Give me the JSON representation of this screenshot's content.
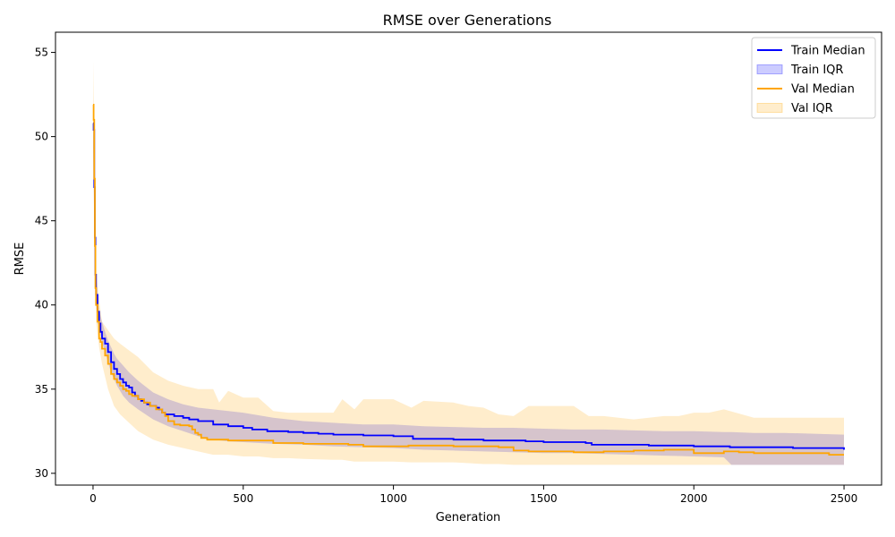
{
  "chart_data": {
    "type": "line",
    "title": "RMSE over Generations",
    "xlabel": "Generation",
    "ylabel": "RMSE",
    "xlim": [
      -125,
      2625
    ],
    "ylim": [
      29.3,
      56.2
    ],
    "xticks": [
      0,
      500,
      1000,
      1500,
      2000,
      2500
    ],
    "yticks": [
      30,
      35,
      40,
      45,
      50,
      55
    ],
    "grid": false,
    "legend_position": "top-right",
    "series": [
      {
        "name": "Train Median",
        "kind": "line",
        "color": "#0000ff",
        "x": [
          0,
          2,
          4,
          6,
          8,
          10,
          15,
          20,
          25,
          30,
          40,
          50,
          60,
          70,
          80,
          90,
          100,
          110,
          120,
          130,
          140,
          150,
          160,
          170,
          180,
          190,
          200,
          210,
          220,
          230,
          240,
          250,
          270,
          290,
          300,
          320,
          350,
          400,
          450,
          500,
          530,
          580,
          650,
          700,
          750,
          800,
          850,
          900,
          950,
          1000,
          1050,
          1065,
          1100,
          1200,
          1300,
          1400,
          1440,
          1500,
          1600,
          1640,
          1660,
          1700,
          1800,
          1850,
          1900,
          2000,
          2100,
          2120,
          2200,
          2300,
          2330,
          2400,
          2490,
          2500
        ],
        "y": [
          50.8,
          50.4,
          47.0,
          44.0,
          41.8,
          40.6,
          39.6,
          38.9,
          38.4,
          38.0,
          37.7,
          37.2,
          36.6,
          36.2,
          35.9,
          35.6,
          35.4,
          35.2,
          35.1,
          34.8,
          34.6,
          34.4,
          34.3,
          34.2,
          34.1,
          34.0,
          34.0,
          33.9,
          33.8,
          33.6,
          33.5,
          33.5,
          33.4,
          33.4,
          33.3,
          33.2,
          33.1,
          32.9,
          32.8,
          32.7,
          32.6,
          32.5,
          32.45,
          32.4,
          32.35,
          32.3,
          32.3,
          32.25,
          32.25,
          32.2,
          32.2,
          32.05,
          32.05,
          32.0,
          31.95,
          31.95,
          31.9,
          31.85,
          31.85,
          31.8,
          31.7,
          31.7,
          31.7,
          31.65,
          31.65,
          31.6,
          31.6,
          31.55,
          31.55,
          31.55,
          31.5,
          31.5,
          31.5,
          31.4
        ]
      },
      {
        "name": "Train IQR",
        "kind": "band",
        "color": "#0000ff",
        "fill_opacity": 0.2,
        "x": [
          0,
          5,
          10,
          20,
          30,
          40,
          50,
          60,
          70,
          80,
          100,
          120,
          150,
          200,
          250,
          300,
          350,
          400,
          450,
          500,
          600,
          700,
          800,
          900,
          1000,
          1100,
          1200,
          1300,
          1400,
          1500,
          1600,
          1700,
          1800,
          1900,
          2000,
          2100,
          2125,
          2200,
          2300,
          2400,
          2500
        ],
        "upper": [
          50.9,
          46.0,
          41.5,
          39.7,
          39.0,
          38.4,
          37.9,
          37.5,
          37.1,
          36.8,
          36.4,
          36.0,
          35.5,
          34.8,
          34.4,
          34.1,
          33.9,
          33.8,
          33.7,
          33.6,
          33.3,
          33.1,
          33.0,
          32.9,
          32.9,
          32.8,
          32.75,
          32.7,
          32.7,
          32.65,
          32.6,
          32.6,
          32.55,
          32.5,
          32.5,
          32.45,
          32.45,
          32.4,
          32.4,
          32.35,
          32.3
        ],
        "lower": [
          50.5,
          43.0,
          40.0,
          38.6,
          37.8,
          37.2,
          36.6,
          36.0,
          35.6,
          35.2,
          34.6,
          34.2,
          33.8,
          33.2,
          32.8,
          32.5,
          32.2,
          32.0,
          31.9,
          31.85,
          31.75,
          31.7,
          31.6,
          31.55,
          31.5,
          31.4,
          31.35,
          31.3,
          31.25,
          31.2,
          31.2,
          31.15,
          31.1,
          31.05,
          31.0,
          30.95,
          30.5,
          30.5,
          30.5,
          30.5,
          30.5
        ]
      },
      {
        "name": "Val Median",
        "kind": "line",
        "color": "#ffa500",
        "x": [
          0,
          2,
          4,
          6,
          8,
          10,
          15,
          20,
          25,
          30,
          40,
          50,
          60,
          70,
          80,
          90,
          100,
          110,
          120,
          130,
          150,
          170,
          190,
          210,
          230,
          240,
          250,
          270,
          290,
          320,
          330,
          340,
          350,
          360,
          380,
          400,
          450,
          500,
          600,
          700,
          800,
          850,
          900,
          950,
          1000,
          1050,
          1100,
          1200,
          1300,
          1350,
          1400,
          1450,
          1500,
          1600,
          1700,
          1750,
          1800,
          1850,
          1900,
          1950,
          2000,
          2100,
          2150,
          2200,
          2300,
          2400,
          2450,
          2500
        ],
        "y": [
          51.9,
          51.0,
          47.5,
          43.5,
          41.0,
          40.0,
          39.0,
          38.0,
          37.8,
          37.4,
          37.0,
          36.5,
          35.9,
          35.6,
          35.4,
          35.2,
          35.0,
          34.9,
          34.7,
          34.6,
          34.4,
          34.2,
          34.0,
          33.8,
          33.6,
          33.4,
          33.1,
          32.9,
          32.85,
          32.8,
          32.6,
          32.4,
          32.3,
          32.1,
          32.0,
          32.0,
          31.95,
          31.95,
          31.8,
          31.75,
          31.75,
          31.7,
          31.6,
          31.6,
          31.6,
          31.65,
          31.65,
          31.6,
          31.6,
          31.55,
          31.35,
          31.3,
          31.3,
          31.25,
          31.3,
          31.3,
          31.35,
          31.35,
          31.4,
          31.4,
          31.2,
          31.3,
          31.25,
          31.2,
          31.2,
          31.2,
          31.1,
          31.1
        ]
      },
      {
        "name": "Val IQR",
        "kind": "band",
        "color": "#ffa500",
        "fill_opacity": 0.2,
        "x": [
          0,
          3,
          6,
          10,
          20,
          30,
          50,
          70,
          90,
          120,
          150,
          200,
          250,
          300,
          350,
          400,
          420,
          450,
          500,
          550,
          600,
          650,
          700,
          800,
          830,
          870,
          900,
          1000,
          1060,
          1100,
          1200,
          1250,
          1300,
          1350,
          1400,
          1450,
          1500,
          1600,
          1650,
          1700,
          1800,
          1900,
          1950,
          2000,
          2050,
          2100,
          2200,
          2300,
          2400,
          2500
        ],
        "upper": [
          54.5,
          51.0,
          46.0,
          42.0,
          40.3,
          39.0,
          38.5,
          38.0,
          37.7,
          37.3,
          36.9,
          36.0,
          35.5,
          35.2,
          35.0,
          35.0,
          34.2,
          34.9,
          34.5,
          34.5,
          33.7,
          33.6,
          33.6,
          33.6,
          34.4,
          33.8,
          34.4,
          34.4,
          33.9,
          34.3,
          34.2,
          34.0,
          33.9,
          33.5,
          33.4,
          34.0,
          34.0,
          34.0,
          33.4,
          33.4,
          33.2,
          33.4,
          33.4,
          33.6,
          33.6,
          33.8,
          33.3,
          33.3,
          33.3,
          33.3
        ],
        "lower": [
          49.5,
          46.0,
          42.0,
          39.0,
          37.5,
          36.5,
          35.0,
          34.0,
          33.5,
          33.0,
          32.5,
          32.0,
          31.7,
          31.5,
          31.3,
          31.1,
          31.1,
          31.1,
          31.0,
          31.0,
          30.9,
          30.9,
          30.85,
          30.8,
          30.8,
          30.7,
          30.7,
          30.7,
          30.65,
          30.65,
          30.65,
          30.6,
          30.55,
          30.55,
          30.5,
          30.5,
          30.5,
          30.5,
          30.5,
          30.5,
          30.5,
          30.5,
          30.5,
          30.5,
          30.5,
          30.5,
          30.5,
          30.5,
          30.5,
          30.5
        ]
      }
    ],
    "legend": [
      "Train Median",
      "Train IQR",
      "Val Median",
      "Val IQR"
    ]
  }
}
